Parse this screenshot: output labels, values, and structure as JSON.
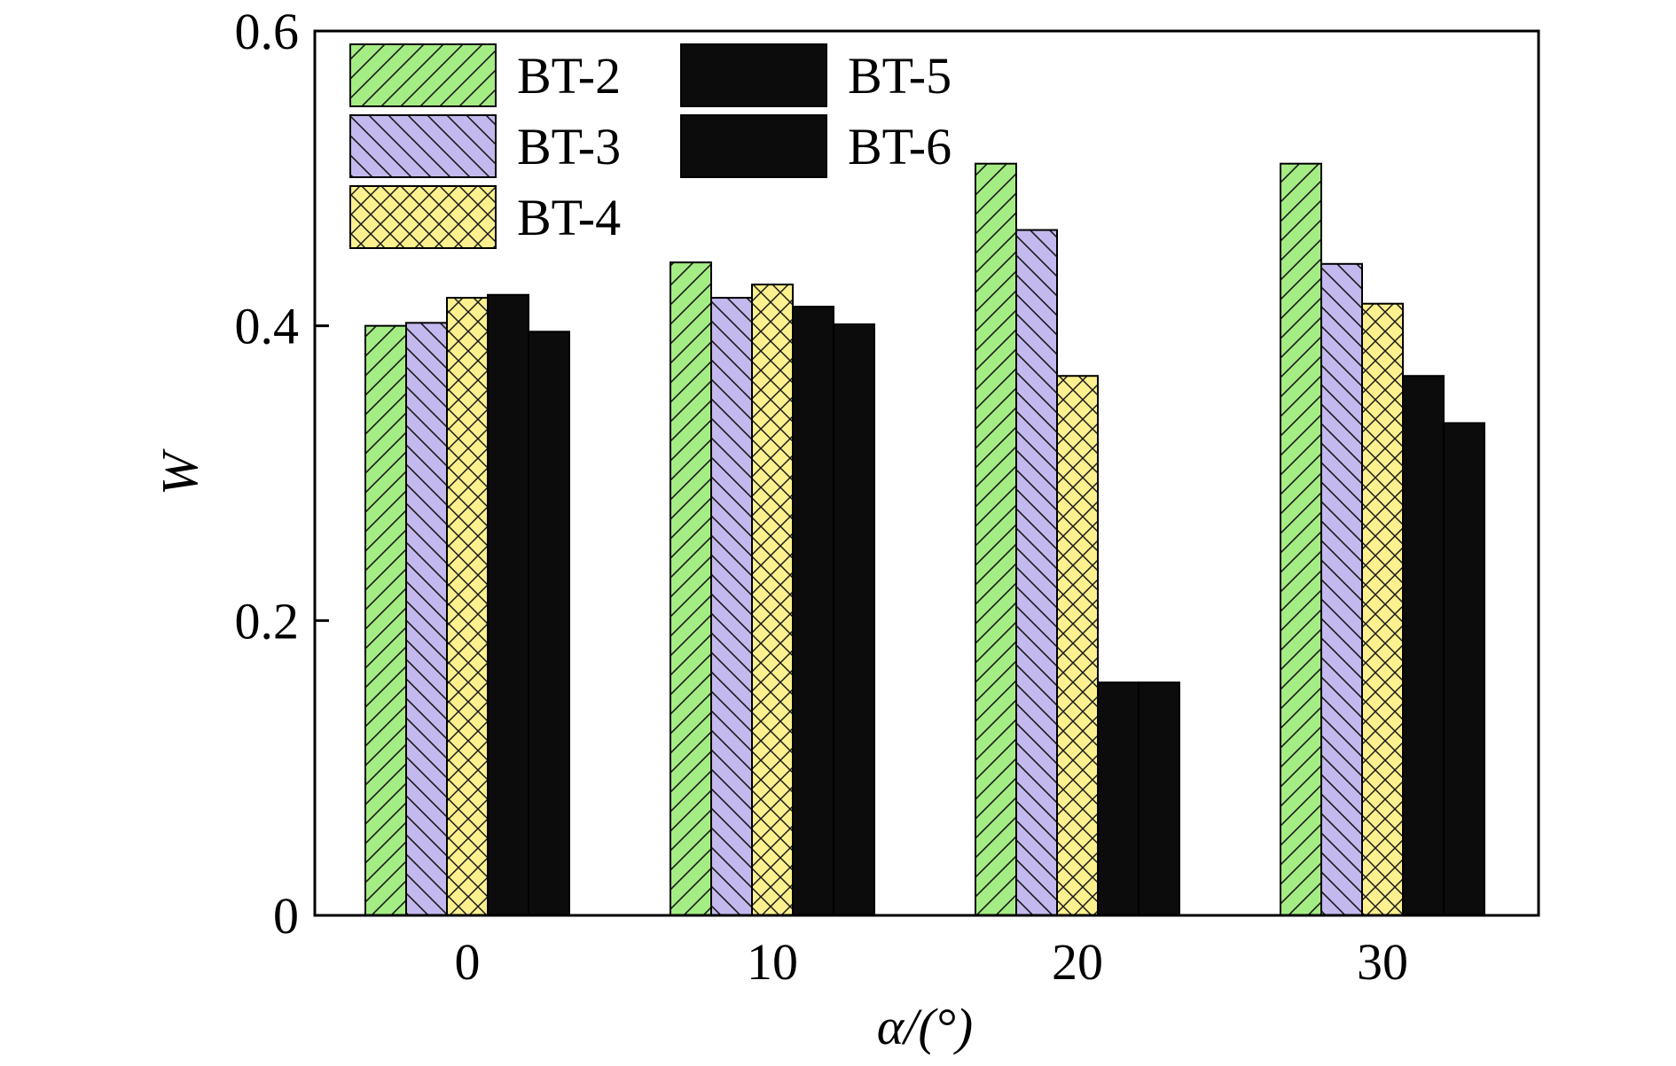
{
  "chart_data": {
    "type": "bar",
    "title": "",
    "xlabel": "α/(°)",
    "ylabel": "W",
    "categories": [
      "0",
      "10",
      "20",
      "30"
    ],
    "ylim": [
      0,
      0.6
    ],
    "yticks": [
      "0",
      "0.2",
      "0.4",
      "0.6"
    ],
    "grid": false,
    "legend_position": "top-left",
    "series": [
      {
        "name": "BT-2",
        "values": [
          0.4,
          0.443,
          0.51,
          0.51
        ],
        "color": "#a4ec84",
        "pattern": "diag-right"
      },
      {
        "name": "BT-3",
        "values": [
          0.402,
          0.419,
          0.465,
          0.442
        ],
        "color": "#c4b9ee",
        "pattern": "diag-left"
      },
      {
        "name": "BT-4",
        "values": [
          0.419,
          0.428,
          0.366,
          0.415
        ],
        "color": "#fdf08e",
        "pattern": "crosshatch"
      },
      {
        "name": "BT-5",
        "values": [
          0.421,
          0.413,
          0.158,
          0.366
        ],
        "color": "#0c0c0c",
        "pattern": "solid"
      },
      {
        "name": "BT-6",
        "values": [
          0.396,
          0.401,
          0.158,
          0.334
        ],
        "color": "#0c0c0c",
        "pattern": "solid"
      }
    ]
  }
}
